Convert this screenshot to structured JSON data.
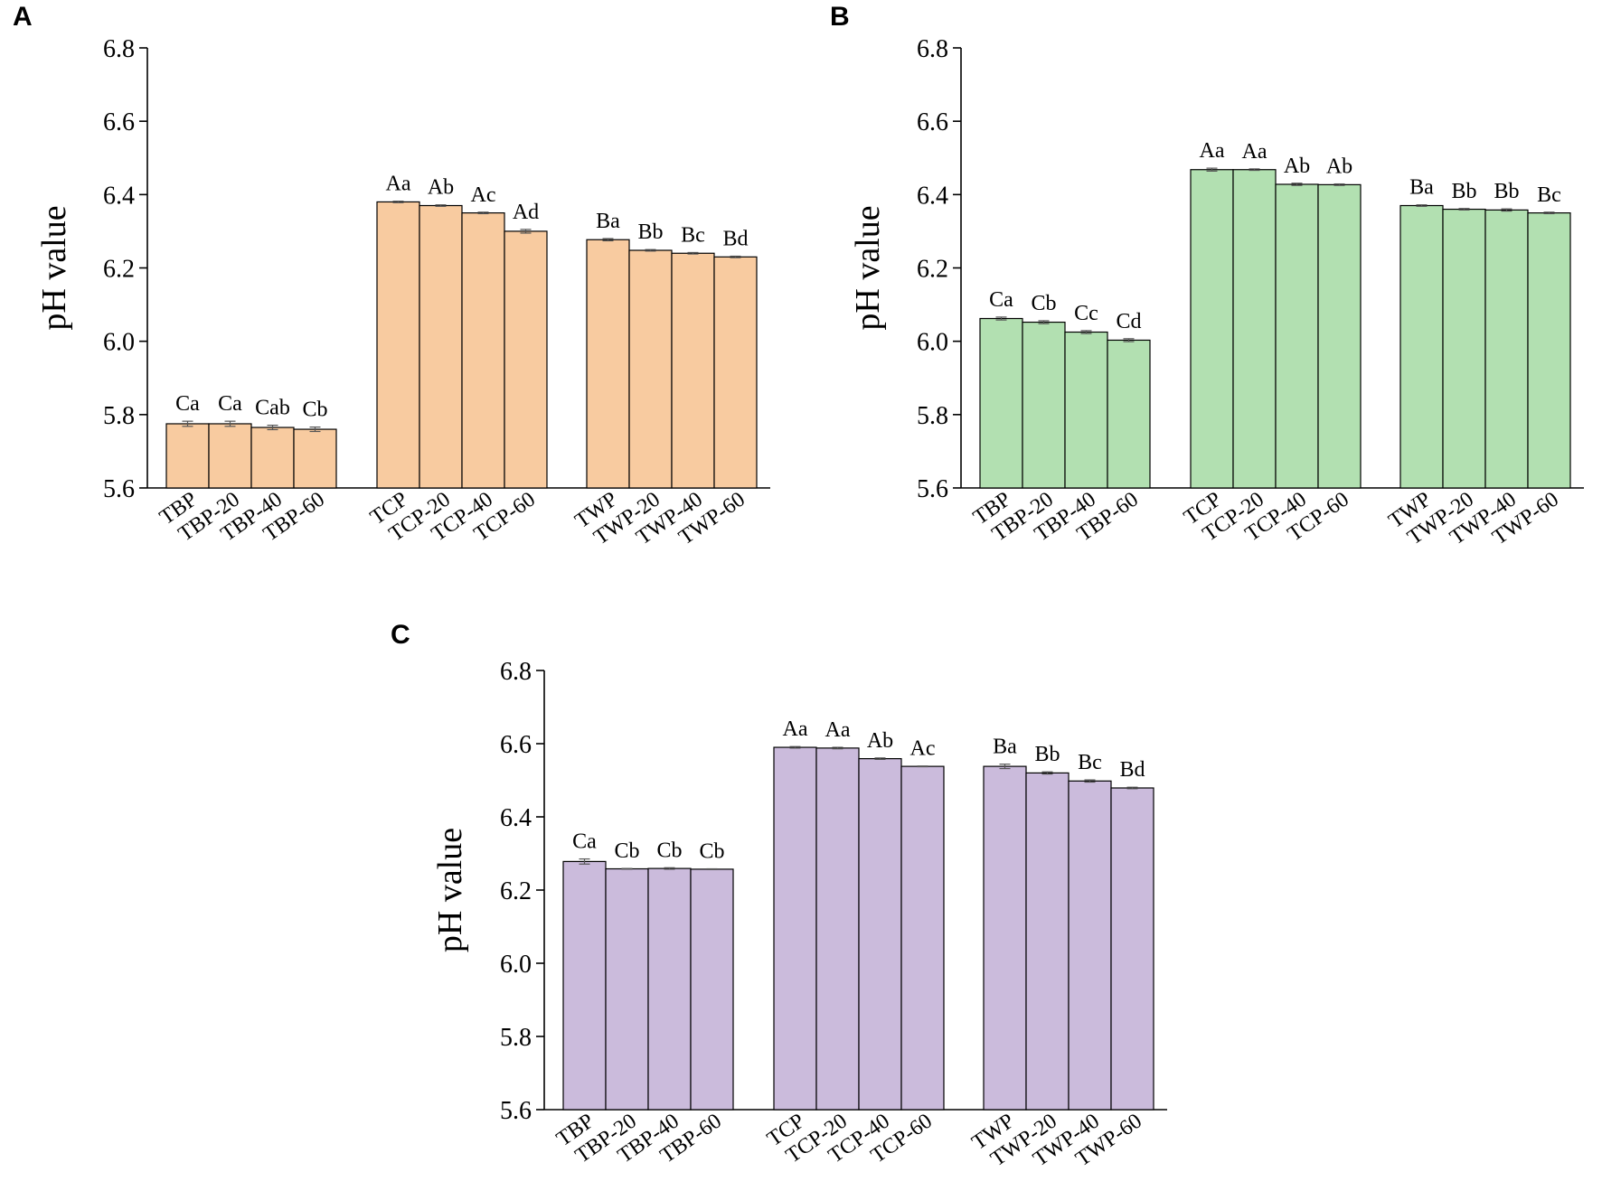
{
  "figure": {
    "panel_labels": [
      "A",
      "B",
      "C"
    ]
  },
  "chart_data": [
    {
      "panel": "A",
      "type": "bar",
      "title": "",
      "xlabel": "",
      "ylabel": "pH value",
      "ylim": [
        5.6,
        6.8
      ],
      "yticks": [
        "5.6",
        "5.8",
        "6.0",
        "6.2",
        "6.4",
        "6.6",
        "6.8"
      ],
      "color": "#f8cba0",
      "groups": [
        {
          "categories": [
            "TBP",
            "TBP-20",
            "TBP-40",
            "TBP-60"
          ],
          "values": [
            5.775,
            5.775,
            5.765,
            5.76
          ],
          "errors": [
            0.007,
            0.007,
            0.006,
            0.006
          ],
          "letters": [
            "Ca",
            "Ca",
            "Cab",
            "Cb"
          ]
        },
        {
          "categories": [
            "TCP",
            "TCP-20",
            "TCP-40",
            "TCP-60"
          ],
          "values": [
            6.38,
            6.37,
            6.35,
            6.3
          ],
          "errors": [
            0.002,
            0.002,
            0.002,
            0.005
          ],
          "letters": [
            "Aa",
            "Ab",
            "Ac",
            "Ad"
          ]
        },
        {
          "categories": [
            "TWP",
            "TWP-20",
            "TWP-40",
            "TWP-60"
          ],
          "values": [
            6.277,
            6.248,
            6.24,
            6.23
          ],
          "errors": [
            0.003,
            0.002,
            0.002,
            0.002
          ],
          "letters": [
            "Ba",
            "Bb",
            "Bc",
            "Bd"
          ]
        }
      ]
    },
    {
      "panel": "B",
      "type": "bar",
      "title": "",
      "xlabel": "",
      "ylabel": "pH value",
      "ylim": [
        5.6,
        6.8
      ],
      "yticks": [
        "5.6",
        "5.8",
        "6.0",
        "6.2",
        "6.4",
        "6.6",
        "6.8"
      ],
      "color": "#b2e0b1",
      "groups": [
        {
          "categories": [
            "TBP",
            "TBP-20",
            "TBP-40",
            "TBP-60"
          ],
          "values": [
            6.062,
            6.052,
            6.025,
            6.003
          ],
          "errors": [
            0.004,
            0.004,
            0.004,
            0.004
          ],
          "letters": [
            "Ca",
            "Cb",
            "Cc",
            "Cd"
          ]
        },
        {
          "categories": [
            "TCP",
            "TCP-20",
            "TCP-40",
            "TCP-60"
          ],
          "values": [
            6.468,
            6.468,
            6.428,
            6.427
          ],
          "errors": [
            0.004,
            0.002,
            0.003,
            0.002
          ],
          "letters": [
            "Aa",
            "Aa",
            "Ab",
            "Ab"
          ]
        },
        {
          "categories": [
            "TWP",
            "TWP-20",
            "TWP-40",
            "TWP-60"
          ],
          "values": [
            6.37,
            6.36,
            6.358,
            6.35
          ],
          "errors": [
            0.002,
            0.002,
            0.003,
            0.002
          ],
          "letters": [
            "Ba",
            "Bb",
            "Bb",
            "Bc"
          ]
        }
      ]
    },
    {
      "panel": "C",
      "type": "bar",
      "title": "",
      "xlabel": "",
      "ylabel": "pH value",
      "ylim": [
        5.6,
        6.8
      ],
      "yticks": [
        "5.6",
        "5.8",
        "6.0",
        "6.2",
        "6.4",
        "6.6",
        "6.8"
      ],
      "color": "#cbbbdc",
      "groups": [
        {
          "categories": [
            "TBP",
            "TBP-20",
            "TBP-40",
            "TBP-60"
          ],
          "values": [
            6.278,
            6.258,
            6.259,
            6.257
          ],
          "errors": [
            0.007,
            0.001,
            0.002,
            0.001
          ],
          "letters": [
            "Ca",
            "Cb",
            "Cb",
            "Cb"
          ]
        },
        {
          "categories": [
            "TCP",
            "TCP-20",
            "TCP-40",
            "TCP-60"
          ],
          "values": [
            6.59,
            6.588,
            6.559,
            6.538
          ],
          "errors": [
            0.002,
            0.002,
            0.002,
            0.001
          ],
          "letters": [
            "Aa",
            "Aa",
            "Ab",
            "Ac"
          ]
        },
        {
          "categories": [
            "TWP",
            "TWP-20",
            "TWP-40",
            "TWP-60"
          ],
          "values": [
            6.538,
            6.52,
            6.498,
            6.479
          ],
          "errors": [
            0.006,
            0.003,
            0.003,
            0.002
          ],
          "letters": [
            "Ba",
            "Bb",
            "Bc",
            "Bd"
          ]
        }
      ]
    }
  ]
}
